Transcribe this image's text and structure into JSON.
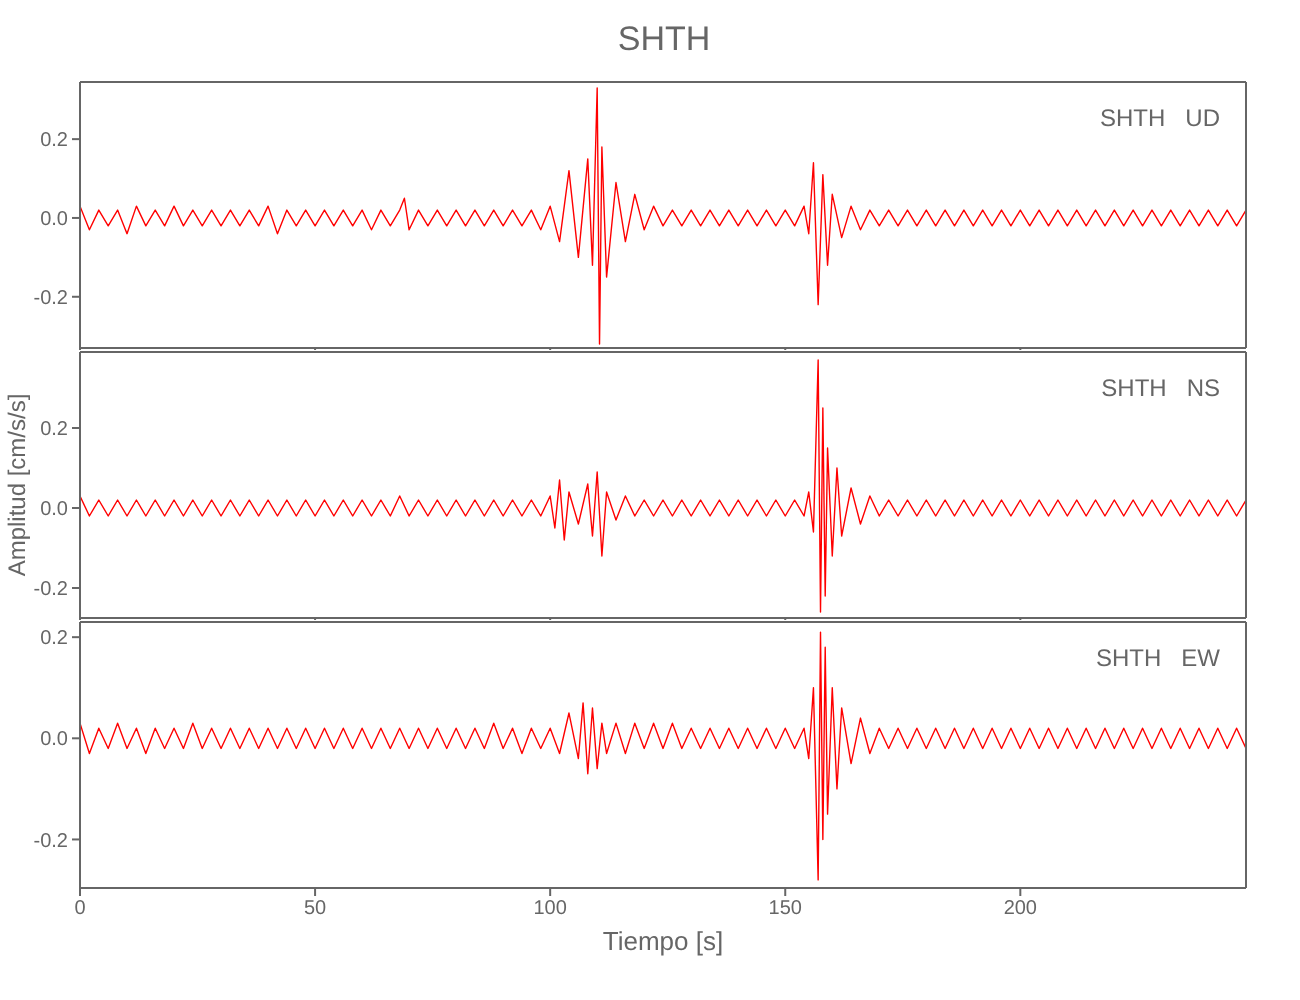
{
  "chart_data": [
    {
      "type": "line",
      "title": "SHTH",
      "annotations": [
        "SHTH   UD"
      ],
      "color": "#ff0000",
      "tick_labels": "y",
      "xlim": [
        0,
        248
      ],
      "xticks": [
        {
          "value": 0,
          "label": null
        },
        {
          "value": 50,
          "label": null
        },
        {
          "value": 100,
          "label": null
        },
        {
          "value": 150,
          "label": null
        },
        {
          "value": 200,
          "label": null
        }
      ],
      "ylim": [
        -0.33,
        0.345
      ],
      "yticks": [
        {
          "value": -0.2,
          "label": "-0.2"
        },
        {
          "value": 0,
          "label": "0.0"
        },
        {
          "value": 0.2,
          "label": "0.2"
        }
      ],
      "x": [
        0,
        2,
        4,
        6,
        8,
        10,
        12,
        14,
        16,
        18,
        20,
        22,
        24,
        26,
        28,
        30,
        32,
        34,
        36,
        38,
        40,
        42,
        44,
        46,
        48,
        50,
        52,
        54,
        56,
        58,
        60,
        62,
        64,
        66,
        68,
        69,
        70,
        72,
        74,
        76,
        78,
        80,
        82,
        84,
        86,
        88,
        90,
        92,
        94,
        96,
        98,
        100,
        102,
        104,
        106,
        108,
        109,
        110,
        110.5,
        111,
        112,
        114,
        116,
        118,
        120,
        122,
        124,
        126,
        128,
        130,
        132,
        134,
        136,
        138,
        140,
        142,
        144,
        146,
        148,
        150,
        152,
        154,
        155,
        156,
        157,
        158,
        159,
        160,
        162,
        164,
        166,
        168,
        170,
        172,
        174,
        176,
        178,
        180,
        182,
        184,
        186,
        188,
        190,
        192,
        194,
        196,
        198,
        200,
        202,
        204,
        206,
        208,
        210,
        212,
        214,
        216,
        218,
        220,
        222,
        224,
        226,
        228,
        230,
        232,
        234,
        236,
        238,
        240,
        242,
        244,
        246,
        248
      ],
      "values": [
        0.03,
        -0.03,
        0.02,
        -0.02,
        0.02,
        -0.04,
        0.03,
        -0.02,
        0.02,
        -0.02,
        0.03,
        -0.02,
        0.02,
        -0.02,
        0.02,
        -0.02,
        0.02,
        -0.02,
        0.02,
        -0.02,
        0.03,
        -0.04,
        0.02,
        -0.02,
        0.02,
        -0.02,
        0.02,
        -0.02,
        0.02,
        -0.02,
        0.02,
        -0.03,
        0.02,
        -0.02,
        0.02,
        0.05,
        -0.03,
        0.02,
        -0.02,
        0.02,
        -0.02,
        0.02,
        -0.02,
        0.02,
        -0.02,
        0.02,
        -0.02,
        0.02,
        -0.02,
        0.02,
        -0.03,
        0.03,
        -0.06,
        0.12,
        -0.1,
        0.15,
        -0.12,
        0.33,
        -0.32,
        0.18,
        -0.15,
        0.09,
        -0.06,
        0.06,
        -0.03,
        0.03,
        -0.02,
        0.02,
        -0.02,
        0.02,
        -0.02,
        0.02,
        -0.02,
        0.02,
        -0.02,
        0.02,
        -0.02,
        0.02,
        -0.02,
        0.02,
        -0.02,
        0.03,
        -0.04,
        0.14,
        -0.22,
        0.11,
        -0.12,
        0.06,
        -0.05,
        0.03,
        -0.03,
        0.02,
        -0.02,
        0.02,
        -0.02,
        0.02,
        -0.02,
        0.02,
        -0.02,
        0.02,
        -0.02,
        0.02,
        -0.02,
        0.02,
        -0.02,
        0.02,
        -0.02,
        0.02,
        -0.02,
        0.02,
        -0.02,
        0.02,
        -0.02,
        0.02,
        -0.02,
        0.02,
        -0.02,
        0.02,
        -0.02,
        0.02,
        -0.02,
        0.02,
        -0.02,
        0.02,
        -0.02,
        0.02,
        -0.02,
        0.02,
        -0.02,
        0.02,
        -0.02,
        0.02
      ]
    },
    {
      "type": "line",
      "ylabel": "Amplitud [cm/s/s]",
      "annotations": [
        "SHTH   NS"
      ],
      "color": "#ff0000",
      "tick_labels": "y",
      "xlim": [
        0,
        248
      ],
      "xticks": [
        {
          "value": 0,
          "label": null
        },
        {
          "value": 50,
          "label": null
        },
        {
          "value": 100,
          "label": null
        },
        {
          "value": 150,
          "label": null
        },
        {
          "value": 200,
          "label": null
        }
      ],
      "ylim": [
        -0.275,
        0.39
      ],
      "yticks": [
        {
          "value": -0.2,
          "label": "-0.2"
        },
        {
          "value": 0,
          "label": "0.0"
        },
        {
          "value": 0.2,
          "label": "0.2"
        }
      ],
      "x": [
        0,
        2,
        4,
        6,
        8,
        10,
        12,
        14,
        16,
        18,
        20,
        22,
        24,
        26,
        28,
        30,
        32,
        34,
        36,
        38,
        40,
        42,
        44,
        46,
        48,
        50,
        52,
        54,
        56,
        58,
        60,
        62,
        64,
        66,
        68,
        70,
        72,
        74,
        76,
        78,
        80,
        82,
        84,
        86,
        88,
        90,
        92,
        94,
        96,
        98,
        100,
        101,
        102,
        103,
        104,
        106,
        108,
        109,
        110,
        111,
        112,
        114,
        116,
        118,
        120,
        122,
        124,
        126,
        128,
        130,
        132,
        134,
        136,
        138,
        140,
        142,
        144,
        146,
        148,
        150,
        152,
        154,
        155,
        156,
        157,
        157.5,
        158,
        158.5,
        159,
        160,
        161,
        162,
        164,
        166,
        168,
        170,
        172,
        174,
        176,
        178,
        180,
        182,
        184,
        186,
        188,
        190,
        192,
        194,
        196,
        198,
        200,
        202,
        204,
        206,
        208,
        210,
        212,
        214,
        216,
        218,
        220,
        222,
        224,
        226,
        228,
        230,
        232,
        234,
        236,
        238,
        240,
        242,
        244,
        246,
        248
      ],
      "values": [
        0.03,
        -0.02,
        0.02,
        -0.02,
        0.02,
        -0.02,
        0.02,
        -0.02,
        0.02,
        -0.02,
        0.02,
        -0.02,
        0.02,
        -0.02,
        0.02,
        -0.02,
        0.02,
        -0.02,
        0.02,
        -0.02,
        0.02,
        -0.02,
        0.02,
        -0.02,
        0.02,
        -0.02,
        0.02,
        -0.02,
        0.02,
        -0.02,
        0.02,
        -0.02,
        0.02,
        -0.02,
        0.03,
        -0.02,
        0.02,
        -0.02,
        0.02,
        -0.02,
        0.02,
        -0.02,
        0.02,
        -0.02,
        0.02,
        -0.02,
        0.02,
        -0.02,
        0.02,
        -0.02,
        0.03,
        -0.05,
        0.07,
        -0.08,
        0.04,
        -0.04,
        0.06,
        -0.07,
        0.09,
        -0.12,
        0.04,
        -0.03,
        0.03,
        -0.02,
        0.02,
        -0.02,
        0.02,
        -0.02,
        0.02,
        -0.02,
        0.02,
        -0.02,
        0.02,
        -0.02,
        0.02,
        -0.02,
        0.02,
        -0.02,
        0.02,
        -0.02,
        0.02,
        -0.02,
        0.04,
        -0.06,
        0.37,
        -0.26,
        0.25,
        -0.22,
        0.15,
        -0.12,
        0.1,
        -0.07,
        0.05,
        -0.04,
        0.03,
        -0.02,
        0.02,
        -0.02,
        0.02,
        -0.02,
        0.02,
        -0.02,
        0.02,
        -0.02,
        0.02,
        -0.02,
        0.02,
        -0.02,
        0.02,
        -0.02,
        0.02,
        -0.02,
        0.02,
        -0.02,
        0.02,
        -0.02,
        0.02,
        -0.02,
        0.02,
        -0.02,
        0.02,
        -0.02,
        0.02,
        -0.02,
        0.02,
        -0.02,
        0.02,
        -0.02,
        0.02,
        -0.02,
        0.02,
        -0.02,
        0.02,
        -0.02,
        0.02
      ]
    },
    {
      "type": "line",
      "xlabel": "Tiempo [s]",
      "annotations": [
        "SHTH   EW"
      ],
      "color": "#ff0000",
      "xlim": [
        0,
        248
      ],
      "xticks": [
        0,
        50,
        100,
        150,
        200
      ],
      "ylim": [
        -0.296,
        0.23
      ],
      "yticks": [
        {
          "value": -0.2,
          "label": "-0.2"
        },
        {
          "value": 0,
          "label": "0.0"
        },
        {
          "value": 0.2,
          "label": "0.2"
        }
      ],
      "x": [
        0,
        2,
        4,
        6,
        8,
        10,
        12,
        14,
        16,
        18,
        20,
        22,
        24,
        26,
        28,
        30,
        32,
        34,
        36,
        38,
        40,
        42,
        44,
        46,
        48,
        50,
        52,
        54,
        56,
        58,
        60,
        62,
        64,
        66,
        68,
        70,
        72,
        74,
        76,
        78,
        80,
        82,
        84,
        86,
        88,
        90,
        92,
        94,
        96,
        98,
        100,
        102,
        104,
        106,
        107,
        108,
        109,
        110,
        111,
        112,
        114,
        116,
        118,
        120,
        122,
        124,
        126,
        128,
        130,
        132,
        134,
        136,
        138,
        140,
        142,
        144,
        146,
        148,
        150,
        152,
        154,
        155,
        156,
        157,
        157.5,
        158,
        158.5,
        159,
        160,
        161,
        162,
        164,
        166,
        168,
        170,
        172,
        174,
        176,
        178,
        180,
        182,
        184,
        186,
        188,
        190,
        192,
        194,
        196,
        198,
        200,
        202,
        204,
        206,
        208,
        210,
        212,
        214,
        216,
        218,
        220,
        222,
        224,
        226,
        228,
        230,
        232,
        234,
        236,
        238,
        240,
        242,
        244,
        246,
        248
      ],
      "values": [
        0.03,
        -0.03,
        0.02,
        -0.02,
        0.03,
        -0.02,
        0.02,
        -0.03,
        0.02,
        -0.02,
        0.02,
        -0.02,
        0.03,
        -0.02,
        0.02,
        -0.02,
        0.02,
        -0.02,
        0.02,
        -0.02,
        0.02,
        -0.02,
        0.02,
        -0.02,
        0.02,
        -0.02,
        0.02,
        -0.02,
        0.02,
        -0.02,
        0.02,
        -0.02,
        0.02,
        -0.02,
        0.02,
        -0.02,
        0.02,
        -0.02,
        0.02,
        -0.02,
        0.02,
        -0.02,
        0.02,
        -0.02,
        0.03,
        -0.02,
        0.02,
        -0.03,
        0.02,
        -0.02,
        0.02,
        -0.03,
        0.05,
        -0.04,
        0.07,
        -0.07,
        0.06,
        -0.06,
        0.03,
        -0.03,
        0.03,
        -0.03,
        0.03,
        -0.02,
        0.03,
        -0.02,
        0.03,
        -0.02,
        0.02,
        -0.02,
        0.02,
        -0.02,
        0.02,
        -0.02,
        0.02,
        -0.02,
        0.02,
        -0.02,
        0.02,
        -0.02,
        0.02,
        -0.04,
        0.1,
        -0.28,
        0.21,
        -0.2,
        0.18,
        -0.15,
        0.1,
        -0.1,
        0.06,
        -0.05,
        0.04,
        -0.03,
        0.02,
        -0.02,
        0.02,
        -0.02,
        0.02,
        -0.02,
        0.02,
        -0.02,
        0.02,
        -0.02,
        0.02,
        -0.02,
        0.02,
        -0.02,
        0.02,
        -0.02,
        0.02,
        -0.02,
        0.02,
        -0.02,
        0.02,
        -0.02,
        0.02,
        -0.02,
        0.02,
        -0.02,
        0.02,
        -0.02,
        0.02,
        -0.02,
        0.02,
        -0.02,
        0.02,
        -0.02,
        0.02,
        -0.02,
        0.02,
        -0.02,
        0.02,
        -0.02
      ]
    }
  ]
}
